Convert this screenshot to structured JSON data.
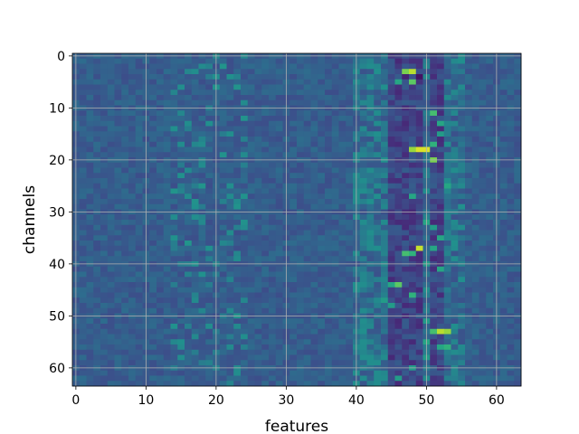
{
  "chart_data": {
    "type": "heatmap",
    "title": "",
    "xlabel": "features",
    "ylabel": "channels",
    "xlim": [
      -0.5,
      63.5
    ],
    "ylim": [
      63.5,
      -0.5
    ],
    "x_ticks": [
      0,
      10,
      20,
      30,
      40,
      50,
      60
    ],
    "y_ticks": [
      0,
      10,
      20,
      30,
      40,
      50,
      60
    ],
    "n_cols": 64,
    "n_rows": 64,
    "colormap": "viridis",
    "value_range": [
      0,
      1
    ],
    "grid": true,
    "grid_color": "#b0b0b0",
    "background_value": 0.3,
    "hot_cells": [
      {
        "row": 3,
        "col": 48,
        "value": 0.9
      },
      {
        "row": 3,
        "col": 47,
        "value": 0.8
      },
      {
        "row": 4,
        "col": 49,
        "value": 0.05
      },
      {
        "row": 4,
        "col": 47,
        "value": 0.1
      },
      {
        "row": 5,
        "col": 48,
        "value": 0.75
      },
      {
        "row": 5,
        "col": 46,
        "value": 0.6
      },
      {
        "row": 11,
        "col": 51,
        "value": 0.7
      },
      {
        "row": 13,
        "col": 52,
        "value": 0.6
      },
      {
        "row": 15,
        "col": 52,
        "value": 0.55
      },
      {
        "row": 17,
        "col": 51,
        "value": 0.65
      },
      {
        "row": 18,
        "col": 49,
        "value": 0.95
      },
      {
        "row": 18,
        "col": 50,
        "value": 0.95
      },
      {
        "row": 18,
        "col": 48,
        "value": 0.85
      },
      {
        "row": 20,
        "col": 51,
        "value": 0.8
      },
      {
        "row": 25,
        "col": 53,
        "value": 0.6
      },
      {
        "row": 27,
        "col": 48,
        "value": 0.6
      },
      {
        "row": 32,
        "col": 50,
        "value": 0.6
      },
      {
        "row": 33,
        "col": 51,
        "value": 0.55
      },
      {
        "row": 35,
        "col": 52,
        "value": 0.6
      },
      {
        "row": 37,
        "col": 49,
        "value": 0.92
      },
      {
        "row": 37,
        "col": 51,
        "value": 0.6
      },
      {
        "row": 38,
        "col": 47,
        "value": 0.7
      },
      {
        "row": 38,
        "col": 48,
        "value": 0.65
      },
      {
        "row": 40,
        "col": 50,
        "value": 0.55
      },
      {
        "row": 41,
        "col": 52,
        "value": 0.6
      },
      {
        "row": 44,
        "col": 46,
        "value": 0.75
      },
      {
        "row": 44,
        "col": 45,
        "value": 0.6
      },
      {
        "row": 46,
        "col": 48,
        "value": 0.65
      },
      {
        "row": 47,
        "col": 44,
        "value": 0.55
      },
      {
        "row": 48,
        "col": 45,
        "value": 0.55
      },
      {
        "row": 51,
        "col": 50,
        "value": 0.55
      },
      {
        "row": 53,
        "col": 52,
        "value": 0.9
      },
      {
        "row": 53,
        "col": 53,
        "value": 0.85
      },
      {
        "row": 53,
        "col": 51,
        "value": 0.7
      },
      {
        "row": 55,
        "col": 50,
        "value": 0.6
      },
      {
        "row": 56,
        "col": 53,
        "value": 0.65
      },
      {
        "row": 56,
        "col": 52,
        "value": 0.6
      },
      {
        "row": 58,
        "col": 50,
        "value": 0.55
      },
      {
        "row": 60,
        "col": 48,
        "value": 0.55
      },
      {
        "row": 62,
        "col": 46,
        "value": 0.55
      }
    ],
    "dark_band_cols": [
      45,
      46,
      47,
      48,
      49,
      51,
      52
    ]
  }
}
